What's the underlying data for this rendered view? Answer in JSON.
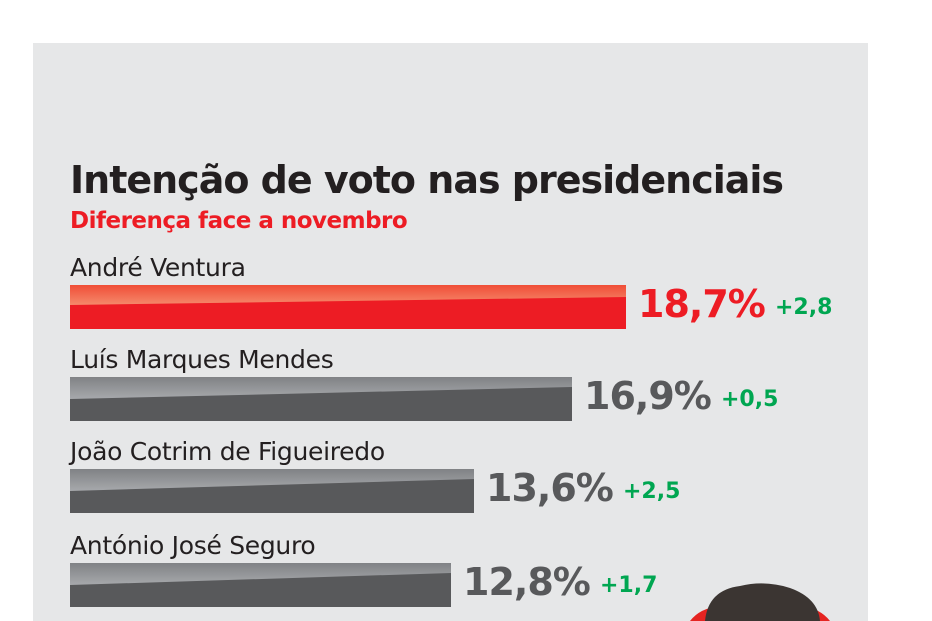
{
  "chart_data": {
    "type": "bar",
    "orientation": "horizontal",
    "title": "Intenção de voto nas presidenciais",
    "subtitle": "Diferença face a novembro",
    "categories": [
      "André Ventura",
      "Luís Marques Mendes",
      "João Cotrim de Figueiredo",
      "António José Seguro"
    ],
    "values": [
      18.7,
      16.9,
      13.6,
      12.8
    ],
    "value_labels": [
      "18,7%",
      "16,9%",
      "13,6%",
      "12,8%"
    ],
    "changes": [
      "+2,8",
      "+0,5",
      "+2,5",
      "+1,7"
    ],
    "colors": {
      "highlight": "#ed1c24",
      "default": "#58595b",
      "change": "#00a651"
    },
    "grid": false,
    "legend": "none"
  }
}
